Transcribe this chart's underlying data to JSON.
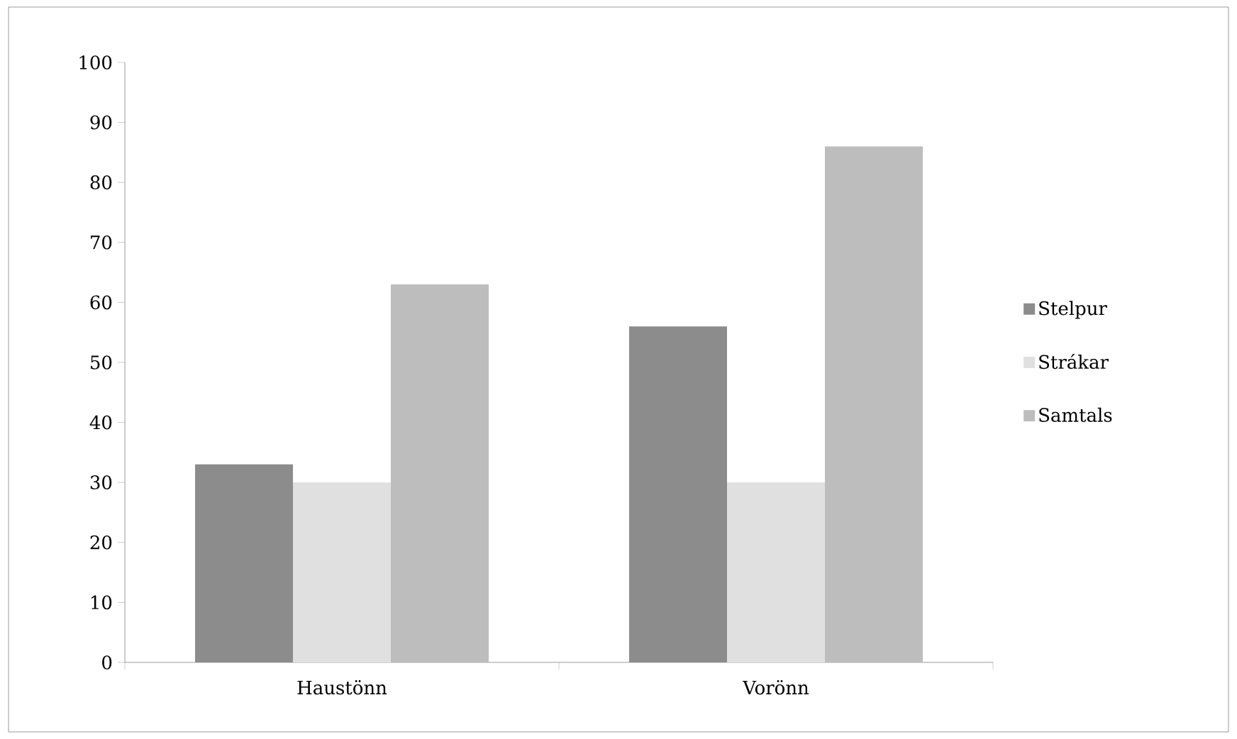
{
  "chart_data": {
    "type": "bar",
    "categories": [
      "Haustönn",
      "Vorönn"
    ],
    "series": [
      {
        "name": "Stelpur",
        "color": "#8c8c8c",
        "values": [
          33,
          56
        ]
      },
      {
        "name": "Strákar",
        "color": "#e0e0e0",
        "values": [
          30,
          30
        ]
      },
      {
        "name": "Samtals",
        "color": "#bdbdbd",
        "values": [
          63,
          86
        ]
      }
    ],
    "ylim": [
      0,
      100
    ],
    "yticks": [
      0,
      10,
      20,
      30,
      40,
      50,
      60,
      70,
      80,
      90,
      100
    ],
    "grid": false,
    "legend": "right"
  }
}
